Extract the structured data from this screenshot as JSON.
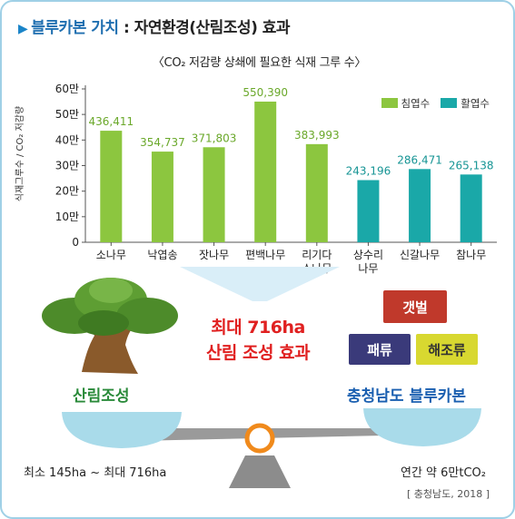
{
  "header": {
    "title_main": "블루카본 가치",
    "title_rest": " : 자연환경(산림조성) 효과"
  },
  "chart_data": {
    "type": "bar",
    "title": "〈CO₂ 저감량 상쇄에 필요한 식재 그루 수〉",
    "ylabel": "식재그루수 / CO₂ 저감량",
    "xlabel": "",
    "ylim": [
      0,
      600000
    ],
    "yticks": [
      "0",
      "10만",
      "20만",
      "30만",
      "40만",
      "50만",
      "60만"
    ],
    "categories": [
      "소나무",
      "낙엽송",
      "잣나무",
      "편백나무",
      "리기다\n소나무",
      "상수리\n나무",
      "신갈나무",
      "참나무"
    ],
    "values": [
      436411,
      354737,
      371803,
      550390,
      383993,
      243196,
      286471,
      265138
    ],
    "value_labels": [
      "436,411",
      "354,737",
      "371,803",
      "550,390",
      "383,993",
      "243,196",
      "286,471",
      "265,138"
    ],
    "series_index": [
      0,
      0,
      0,
      0,
      0,
      1,
      1,
      1
    ],
    "series": [
      {
        "name": "침엽수",
        "color": "#8cc63f",
        "label_color": "#6aa82a"
      },
      {
        "name": "활엽수",
        "color": "#1aa8a8",
        "label_color": "#179595"
      }
    ],
    "grid": false,
    "legend_position": "top-right"
  },
  "effect": {
    "line1": "최대 716ha",
    "line2": "산림 조성 효과"
  },
  "scale": {
    "left_caption": "산림조성",
    "right_caption": "충청남도 블루카본",
    "left_range": "최소 145ha ~ 최대 716ha",
    "right_value": "연간 약 6만tCO₂"
  },
  "blocks": {
    "top": "갯벌",
    "left": "패류",
    "right": "해조류"
  },
  "source": "[ 충청남도, 2018 ]",
  "colors": {
    "conifer": "#8cc63f",
    "broadleaf": "#1aa8a8",
    "mudflat": "#c0392b",
    "shellfish": "#3a3a7a",
    "seaweed": "#d8d830",
    "effect_text": "#e02020"
  }
}
